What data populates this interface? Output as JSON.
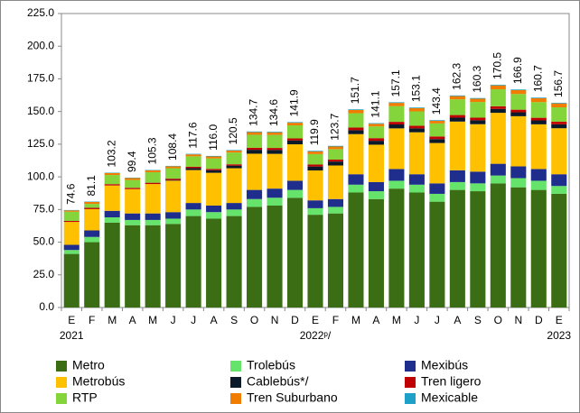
{
  "chart_data": {
    "type": "stacked_bar",
    "categories": [
      "E",
      "F",
      "M",
      "A",
      "M",
      "J",
      "J",
      "A",
      "S",
      "O",
      "N",
      "D",
      "E",
      "F",
      "M",
      "A",
      "M",
      "J",
      "J",
      "A",
      "S",
      "O",
      "N",
      "D",
      "E"
    ],
    "year_labels": [
      {
        "label": "2021",
        "at": 0
      },
      {
        "label": "2022ᵖ/",
        "at": 12
      },
      {
        "label": "2023",
        "at": 24
      }
    ],
    "ylim": [
      0,
      225
    ],
    "yticks": [
      {
        "value": 0,
        "label": "0.0"
      },
      {
        "value": 25,
        "label": "25.0"
      },
      {
        "value": 50,
        "label": "50.0"
      },
      {
        "value": 75,
        "label": "75.0"
      },
      {
        "value": 100,
        "label": "100.0"
      },
      {
        "value": 125,
        "label": "125.0"
      },
      {
        "value": 150,
        "label": "150.0"
      },
      {
        "value": 175,
        "label": "175.0"
      },
      {
        "value": 200,
        "label": "200.0"
      },
      {
        "value": 225,
        "label": "225.0"
      }
    ],
    "totals": [
      74.6,
      81.1,
      103.2,
      99.4,
      105.3,
      108.4,
      117.6,
      116.0,
      120.5,
      134.7,
      134.6,
      141.9,
      119.9,
      123.7,
      151.7,
      141.1,
      157.1,
      153.1,
      143.4,
      162.3,
      160.3,
      170.5,
      166.9,
      160.7,
      156.7
    ],
    "total_labels": [
      "74.6",
      "81.1",
      "103.2",
      "99.4",
      "105.3",
      "108.4",
      "117.6",
      "116.0",
      "120.5",
      "134.7",
      "134.6",
      "141.9",
      "119.9",
      "123.7",
      "151.7",
      "141.1",
      "157.1",
      "153.1",
      "143.4",
      "162.3",
      "160.3",
      "170.5",
      "166.9",
      "160.7",
      "156.7"
    ],
    "series": [
      {
        "name": "Metro",
        "color": "#3b6e14",
        "values": [
          41,
          50,
          65,
          63,
          63,
          64,
          70,
          68,
          70,
          77,
          78,
          84,
          71,
          72,
          88,
          83,
          91,
          88,
          81,
          90,
          89,
          95,
          92,
          90,
          87
        ]
      },
      {
        "name": "Trolebús",
        "color": "#66e36a",
        "values": [
          3,
          4,
          4,
          4,
          4,
          4,
          5,
          5,
          5,
          6,
          6,
          6,
          5,
          5,
          6,
          6,
          6,
          6,
          6,
          6,
          6,
          6,
          7,
          7,
          6
        ]
      },
      {
        "name": "Mexibús",
        "color": "#1f2e8c",
        "values": [
          4,
          5,
          5,
          5,
          5,
          5,
          5,
          5,
          5,
          7,
          7,
          7,
          6,
          6,
          8,
          7,
          9,
          8,
          8,
          9,
          9,
          9,
          9,
          9,
          9
        ]
      },
      {
        "name": "Metrobús",
        "color": "#ffc000",
        "values": [
          17.5,
          16.3,
          19.4,
          18.6,
          22.5,
          24.1,
          25.2,
          25.1,
          26.6,
          27.7,
          26.6,
          27.9,
          22.9,
          25.7,
          30.7,
          28.6,
          31.1,
          32.1,
          30.9,
          37.3,
          36.3,
          39,
          38.4,
          34.2,
          35.2
        ]
      },
      {
        "name": "Cablebús*/",
        "color": "#0b1a28",
        "values": [
          0,
          0,
          0,
          0,
          0,
          0.5,
          1.5,
          2,
          2,
          3,
          3,
          3,
          3,
          3,
          3,
          3,
          3,
          3,
          3,
          3,
          3,
          3,
          3,
          3,
          3
        ]
      },
      {
        "name": "Tren ligero",
        "color": "#c00000",
        "values": [
          0.8,
          1,
          1,
          1,
          1,
          1,
          1,
          1,
          1,
          1.5,
          1.5,
          1.5,
          1.5,
          1.5,
          2,
          2,
          2,
          2,
          2,
          2,
          2,
          2,
          2,
          2,
          2
        ]
      },
      {
        "name": "RTP",
        "color": "#84d43c",
        "values": [
          7,
          3,
          7,
          6,
          8,
          8,
          8,
          8,
          9,
          10,
          10,
          10,
          8,
          8,
          11,
          9,
          12,
          11,
          10,
          12,
          12,
          13,
          12,
          12,
          11
        ]
      },
      {
        "name": "Tren Suburbano",
        "color": "#f07c00",
        "values": [
          1,
          1.5,
          1.5,
          1.5,
          1.5,
          1.5,
          1.5,
          1.5,
          1.5,
          2,
          2,
          2,
          2,
          2,
          2.5,
          2,
          2.5,
          2.5,
          2,
          2.5,
          2.5,
          3,
          3,
          3,
          3
        ]
      },
      {
        "name": "Mexicable",
        "color": "#1fa0c8",
        "values": [
          0.3,
          0.3,
          0.3,
          0.3,
          0.3,
          0.3,
          0.4,
          0.4,
          0.4,
          0.5,
          0.5,
          0.5,
          0.5,
          0.5,
          0.5,
          0.5,
          0.5,
          0.5,
          0.5,
          0.5,
          0.5,
          0.5,
          0.5,
          0.5,
          0.5
        ]
      }
    ]
  }
}
